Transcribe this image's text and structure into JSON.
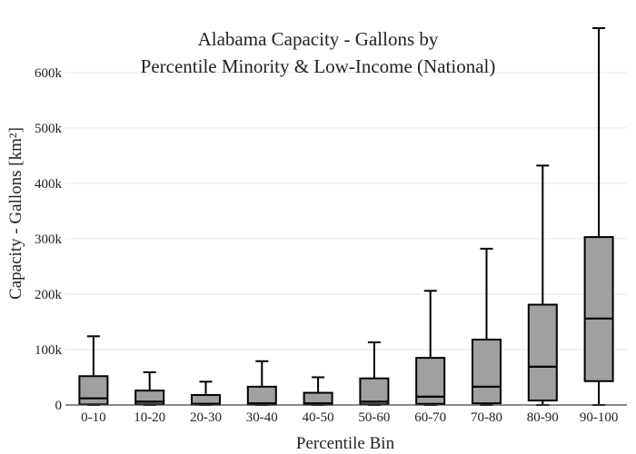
{
  "chart_data": {
    "type": "box",
    "title_line1": "Alabama Capacity - Gallons by",
    "title_line2": "Percentile Minority & Low-Income (National)",
    "xlabel": "Percentile Bin",
    "ylabel": "Capacity - Gallons  [km²]",
    "ylim": [
      0,
      680000
    ],
    "y_ticks": [
      {
        "value": 0,
        "label": "0"
      },
      {
        "value": 100000,
        "label": "100k"
      },
      {
        "value": 200000,
        "label": "200k"
      },
      {
        "value": 300000,
        "label": "300k"
      },
      {
        "value": 400000,
        "label": "400k"
      },
      {
        "value": 500000,
        "label": "500k"
      },
      {
        "value": 600000,
        "label": "600k"
      }
    ],
    "grid": true,
    "box_color": "#a0a0a0",
    "categories": [
      "0-10",
      "10-20",
      "20-30",
      "30-40",
      "40-50",
      "50-60",
      "60-70",
      "70-80",
      "80-90",
      "90-100"
    ],
    "boxes": [
      {
        "min": 0,
        "q1": 1000,
        "median": 12000,
        "q3": 52000,
        "max": 124000
      },
      {
        "min": 0,
        "q1": 1000,
        "median": 6000,
        "q3": 26000,
        "max": 59000
      },
      {
        "min": 0,
        "q1": 500,
        "median": 2000,
        "q3": 18000,
        "max": 42000
      },
      {
        "min": 0,
        "q1": 500,
        "median": 3000,
        "q3": 33000,
        "max": 79000
      },
      {
        "min": 0,
        "q1": 500,
        "median": 3000,
        "q3": 22000,
        "max": 50000
      },
      {
        "min": 0,
        "q1": 1000,
        "median": 6000,
        "q3": 48000,
        "max": 113000
      },
      {
        "min": 0,
        "q1": 2000,
        "median": 15000,
        "q3": 85000,
        "max": 206000
      },
      {
        "min": 0,
        "q1": 3000,
        "median": 33000,
        "q3": 118000,
        "max": 282000
      },
      {
        "min": 0,
        "q1": 8000,
        "median": 69000,
        "q3": 181000,
        "max": 432000
      },
      {
        "min": 0,
        "q1": 43000,
        "median": 156000,
        "q3": 303000,
        "max": 680000
      }
    ]
  }
}
